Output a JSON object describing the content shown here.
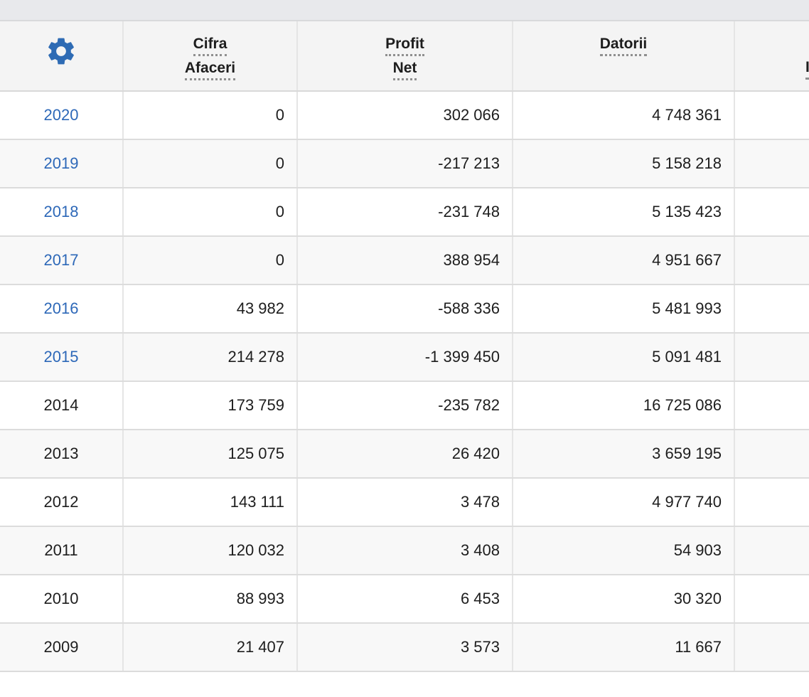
{
  "page": {
    "background": "#ffffff",
    "top_strip_color": "#e8e9ec"
  },
  "colors": {
    "link_blue": "#2d68b8",
    "gear_blue": "#2e6bb4",
    "header_bg": "#f4f4f4",
    "row_bg": "#ffffff",
    "row_alt_bg": "#f8f8f8",
    "border": "#dcdcdc",
    "text": "#1d1d1d",
    "dotted_underline": "#8f8f8f"
  },
  "table": {
    "columns": [
      {
        "id": "year",
        "gear": true,
        "header_lines": [],
        "icon": "gear-icon"
      },
      {
        "id": "cifra_afaceri",
        "header_lines": [
          "Cifra",
          "Afaceri"
        ]
      },
      {
        "id": "profit_net",
        "header_lines": [
          "Profit",
          "Net"
        ]
      },
      {
        "id": "datorii",
        "header_lines": [
          "Datorii"
        ]
      },
      {
        "id": "partial_right_column",
        "partial": true,
        "header_lines": [
          "",
          "I"
        ]
      }
    ],
    "rows": [
      {
        "year": "2020",
        "link": true,
        "cifra": "0",
        "profit": "302 066",
        "datorii": "4 748 361"
      },
      {
        "year": "2019",
        "link": true,
        "cifra": "0",
        "profit": "-217 213",
        "datorii": "5 158 218"
      },
      {
        "year": "2018",
        "link": true,
        "cifra": "0",
        "profit": "-231 748",
        "datorii": "5 135 423"
      },
      {
        "year": "2017",
        "link": true,
        "cifra": "0",
        "profit": "388 954",
        "datorii": "4 951 667"
      },
      {
        "year": "2016",
        "link": true,
        "cifra": "43 982",
        "profit": "-588 336",
        "datorii": "5 481 993"
      },
      {
        "year": "2015",
        "link": true,
        "cifra": "214 278",
        "profit": "-1 399 450",
        "datorii": "5 091 481"
      },
      {
        "year": "2014",
        "link": false,
        "cifra": "173 759",
        "profit": "-235 782",
        "datorii": "16 725 086"
      },
      {
        "year": "2013",
        "link": false,
        "cifra": "125 075",
        "profit": "26 420",
        "datorii": "3 659 195"
      },
      {
        "year": "2012",
        "link": false,
        "cifra": "143 111",
        "profit": "3 478",
        "datorii": "4 977 740"
      },
      {
        "year": "2011",
        "link": false,
        "cifra": "120 032",
        "profit": "3 408",
        "datorii": "54 903"
      },
      {
        "year": "2010",
        "link": false,
        "cifra": "88 993",
        "profit": "6 453",
        "datorii": "30 320"
      },
      {
        "year": "2009",
        "link": false,
        "cifra": "21 407",
        "profit": "3 573",
        "datorii": "11 667"
      }
    ]
  }
}
